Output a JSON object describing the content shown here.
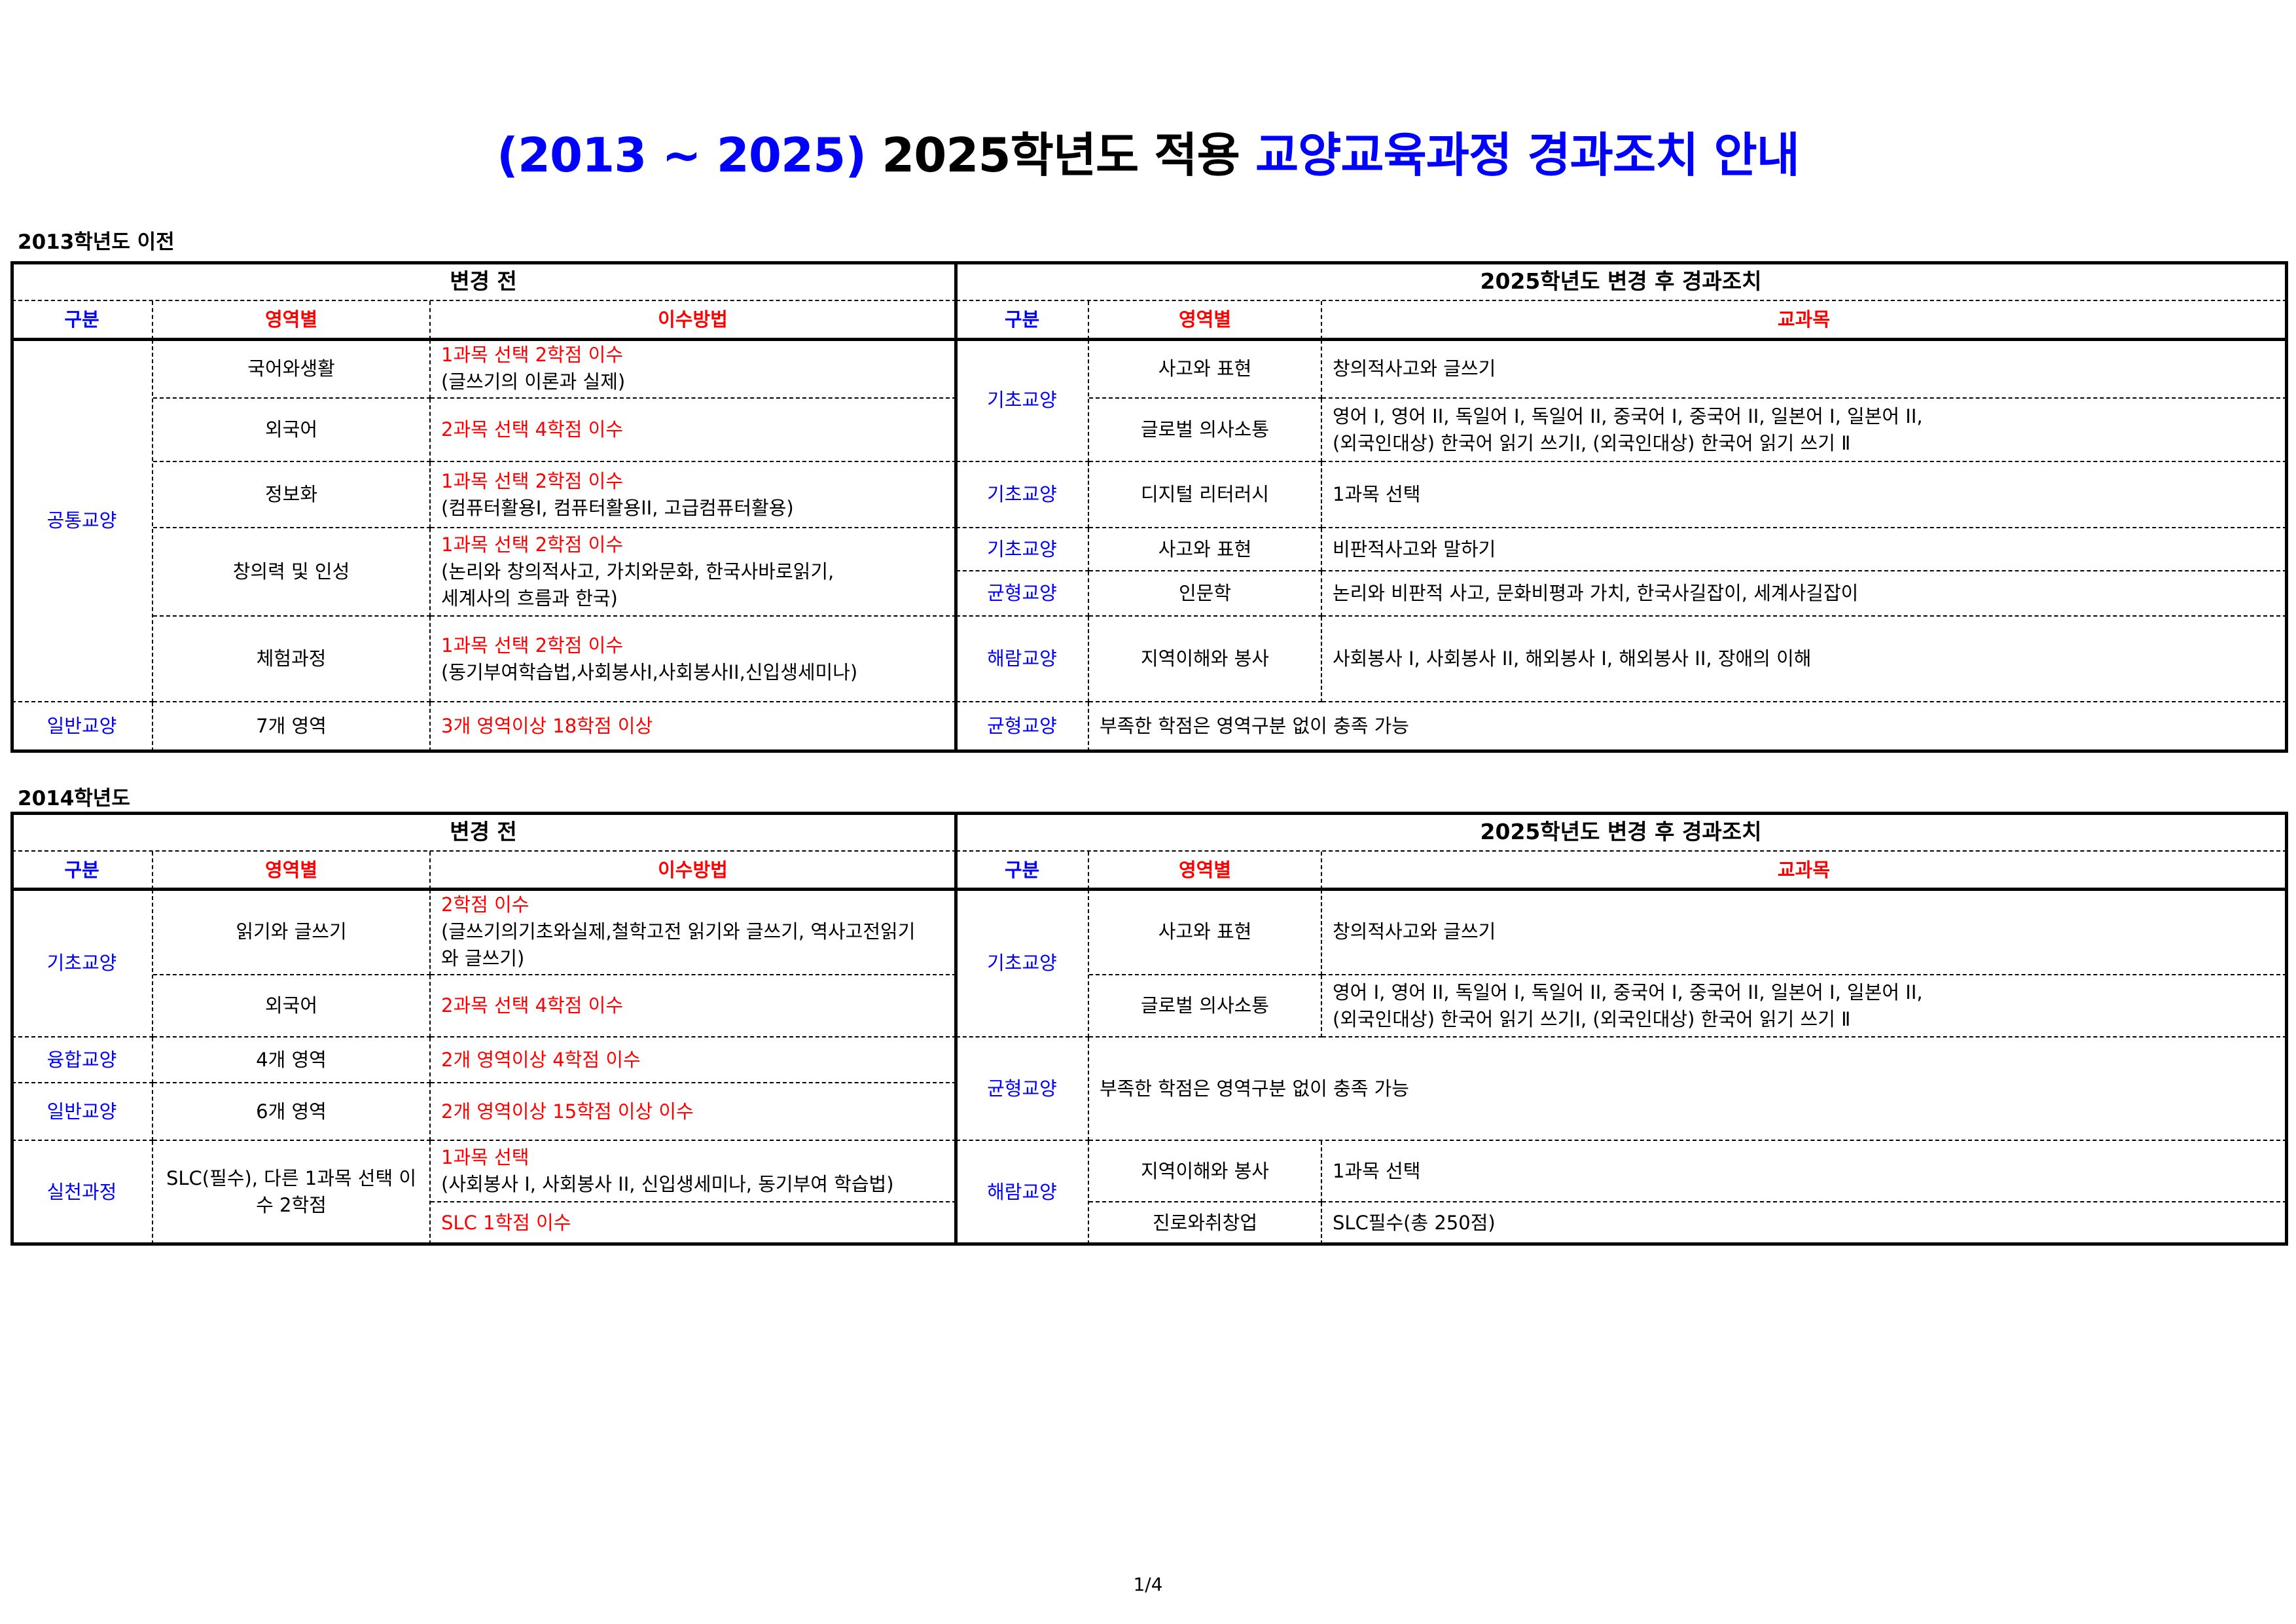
{
  "title": {
    "part1": "(2013 ~ 2025)",
    "part2": "2025학년도 적용",
    "part3": "교양교육과정 경과조치 안내"
  },
  "colors": {
    "accent_blue": "#0000ff",
    "accent_red": "#ff0000"
  },
  "s1": {
    "label": "2013학년도 이전",
    "before_header": "변경 전",
    "after_header": "2025학년도 변경 후 경과조치",
    "cols": {
      "category": "구분",
      "area": "영역별",
      "method": "이수방법",
      "r_category": "구분",
      "r_area": "영역별",
      "r_courses": "교과목"
    },
    "before": {
      "cat1": "공통교양",
      "cat2": "일반교양",
      "rows": [
        {
          "area": "국어와생활",
          "req": "1과목 선택 2학점 이수",
          "detail": "(글쓰기의 이론과 실제)"
        },
        {
          "area": "외국어",
          "req": "2과목 선택 4학점 이수",
          "detail": ""
        },
        {
          "area": "정보화",
          "req": "1과목 선택 2학점 이수",
          "detail": "(컴퓨터활용I, 컴퓨터활용II, 고급컴퓨터활용)"
        },
        {
          "area": "창의력 및 인성",
          "req": "1과목 선택 2학점 이수",
          "detail": "(논리와 창의적사고, 가치와문화, 한국사바로읽기,",
          "detail2": "세계사의 흐름과 한국)"
        },
        {
          "area": "체험과정",
          "req": "1과목 선택 2학점 이수",
          "detail": "(동기부여학습법,사회봉사I,사회봉사II,신입생세미나)"
        },
        {
          "area": "7개 영역",
          "req": "3개 영역이상 18학점 이상",
          "detail": ""
        }
      ]
    },
    "after": {
      "rows": [
        {
          "cat": "기초교양",
          "area": "사고와 표현",
          "courses": "창의적사고와 글쓰기"
        },
        {
          "area": "글로벌 의사소통",
          "courses": "영어 I, 영어 II, 독일어 I, 독일어 II, 중국어 I, 중국어 II, 일본어 I, 일본어 II,",
          "courses2": "(외국인대상) 한국어 읽기 쓰기Ⅰ, (외국인대상) 한국어 읽기 쓰기 Ⅱ"
        },
        {
          "cat": "기초교양",
          "area": "디지털 리터러시",
          "courses": "1과목 선택"
        },
        {
          "cat": "기초교양",
          "area": "사고와 표현",
          "courses": "비판적사고와 말하기"
        },
        {
          "cat": "균형교양",
          "area": "인문학",
          "courses": "논리와 비판적 사고, 문화비평과 가치, 한국사길잡이, 세계사길잡이"
        },
        {
          "cat": "해람교양",
          "area": "지역이해와 봉사",
          "courses": "사회봉사 I, 사회봉사 II, 해외봉사 I, 해외봉사 II, 장애의 이해"
        },
        {
          "cat": "균형교양",
          "note": "부족한 학점은 영역구분 없이 충족 가능"
        }
      ]
    }
  },
  "s2": {
    "label": "2014학년도",
    "before_header": "변경 전",
    "after_header": "2025학년도 변경 후 경과조치",
    "cols": {
      "category": "구분",
      "area": "영역별",
      "method": "이수방법",
      "r_category": "구분",
      "r_area": "영역별",
      "r_courses": "교과목"
    },
    "before": {
      "rows": [
        {
          "cat": "기초교양",
          "area": "읽기와 글쓰기",
          "req": "2학점 이수",
          "detail": "(글쓰기의기초와실제,철학고전 읽기와 글쓰기, 역사고전읽기",
          "detail2": "와 글쓰기)"
        },
        {
          "area": "외국어",
          "req": "2과목 선택 4학점 이수"
        },
        {
          "cat": "융합교양",
          "area": "4개 영역",
          "req": "2개 영역이상 4학점 이수"
        },
        {
          "cat": "일반교양",
          "area": "6개 영역",
          "req": "2개 영역이상 15학점 이상 이수"
        },
        {
          "cat": "실천과정",
          "area": "SLC(필수), 다른 1과목 선택 이",
          "area2": "수 2학점",
          "req": "1과목 선택",
          "detail": "(사회봉사 I, 사회봉사 II, 신입생세미나, 동기부여 학습법)",
          "req2": "SLC 1학점 이수"
        }
      ]
    },
    "after": {
      "rows": [
        {
          "cat": "기초교양",
          "area": "사고와 표현",
          "courses": "창의적사고와 글쓰기"
        },
        {
          "area": "글로벌 의사소통",
          "courses": "영어 I, 영어 II, 독일어 I, 독일어 II, 중국어 I, 중국어 II, 일본어 I, 일본어 II,",
          "courses2": "(외국인대상) 한국어 읽기 쓰기Ⅰ, (외국인대상) 한국어 읽기 쓰기 Ⅱ"
        },
        {
          "cat": "균형교양",
          "note": "부족한 학점은 영역구분 없이 충족 가능"
        },
        {
          "cat": "해람교양",
          "area": "지역이해와 봉사",
          "courses": "1과목 선택"
        },
        {
          "area": "진로와취창업",
          "courses": "SLC필수(총 250점)"
        }
      ]
    }
  },
  "page": {
    "number": "1/4"
  }
}
